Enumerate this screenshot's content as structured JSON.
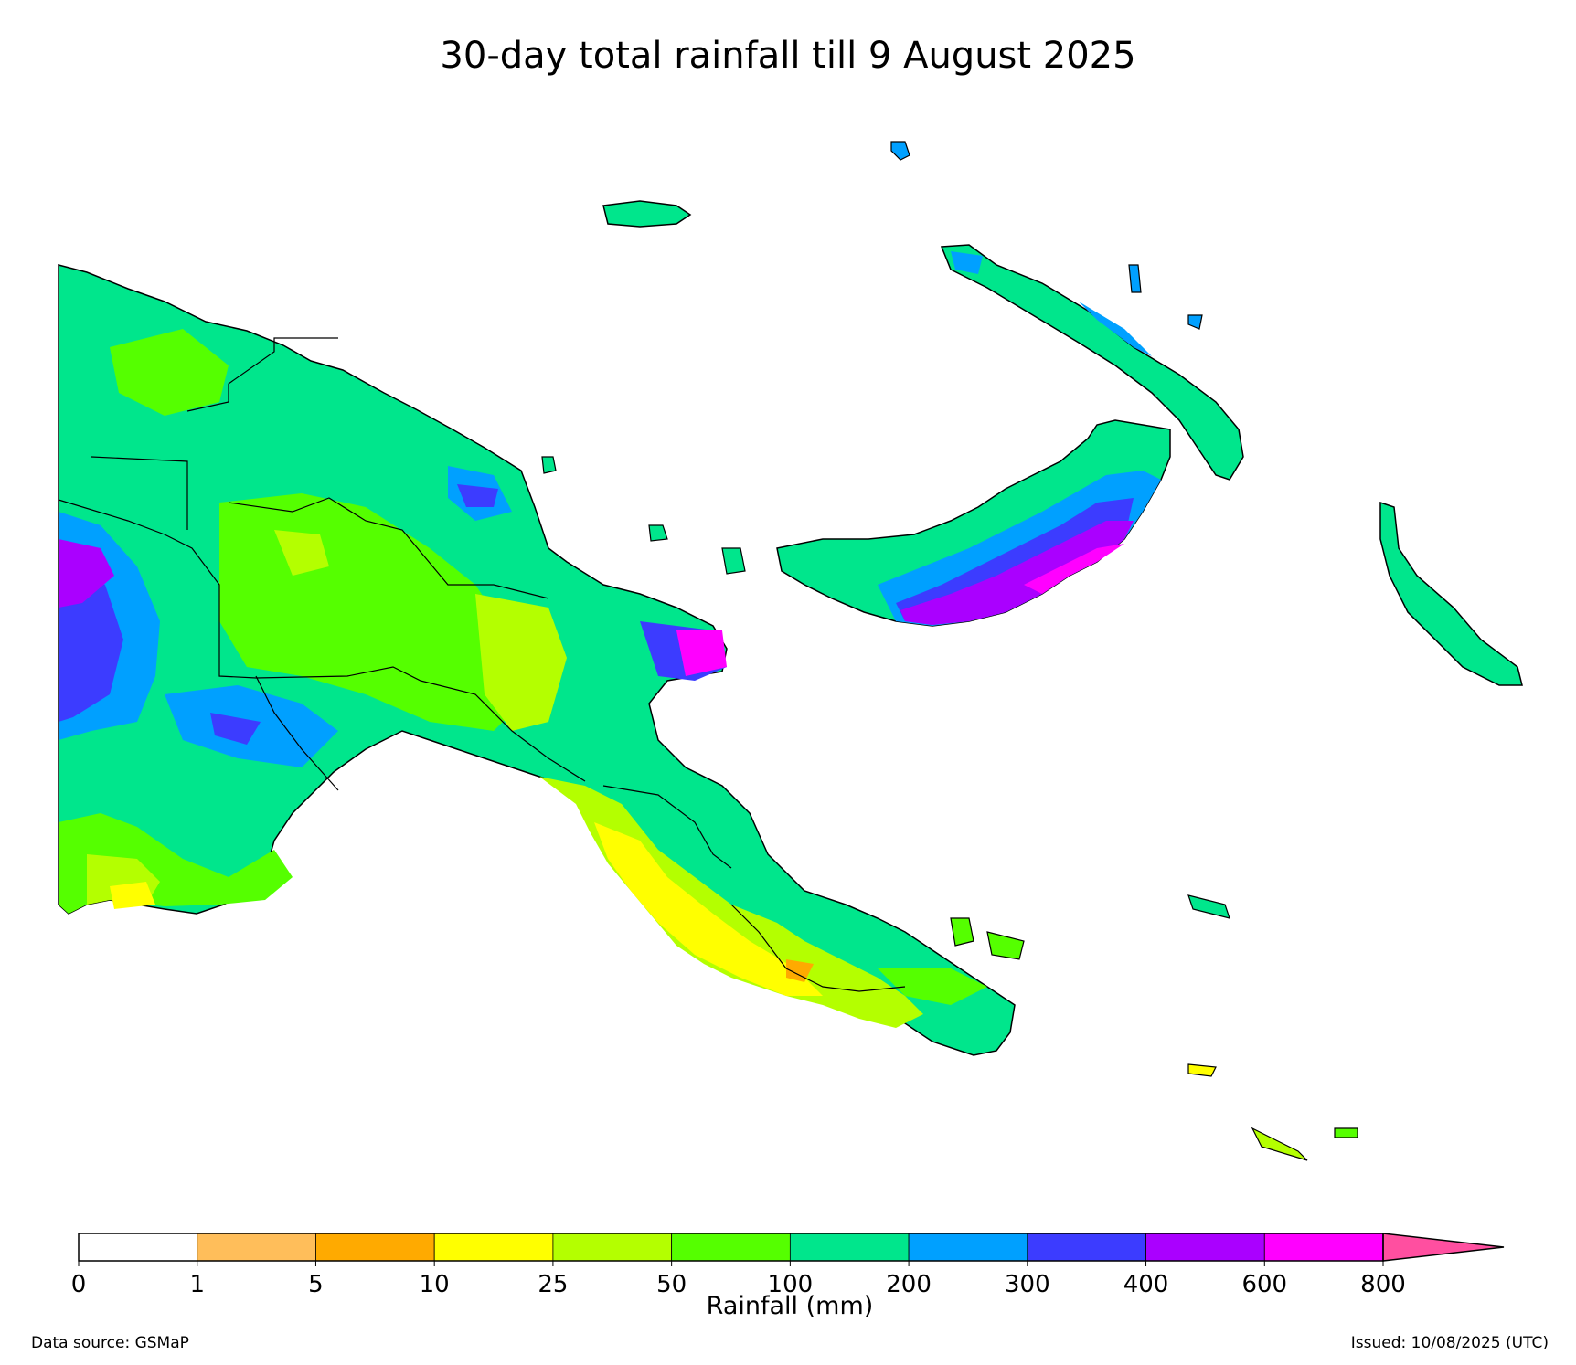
{
  "title": "30-day total rainfall till 9 August 2025",
  "colorbar": {
    "label": "Rainfall (mm)",
    "ticks": [
      "0",
      "1",
      "5",
      "10",
      "25",
      "50",
      "100",
      "200",
      "300",
      "400",
      "600",
      "800"
    ],
    "colors": [
      "#ffffff",
      "#ffbe5a",
      "#ffaa00",
      "#ffff00",
      "#b4ff00",
      "#55ff00",
      "#00e68c",
      "#00a0ff",
      "#3c3cff",
      "#aa00ff",
      "#ff00ff"
    ],
    "extend_color": "#ff4fa0"
  },
  "footer": {
    "source": "Data source: GSMaP",
    "issued": "Issued: 10/08/2025 (UTC)"
  }
}
